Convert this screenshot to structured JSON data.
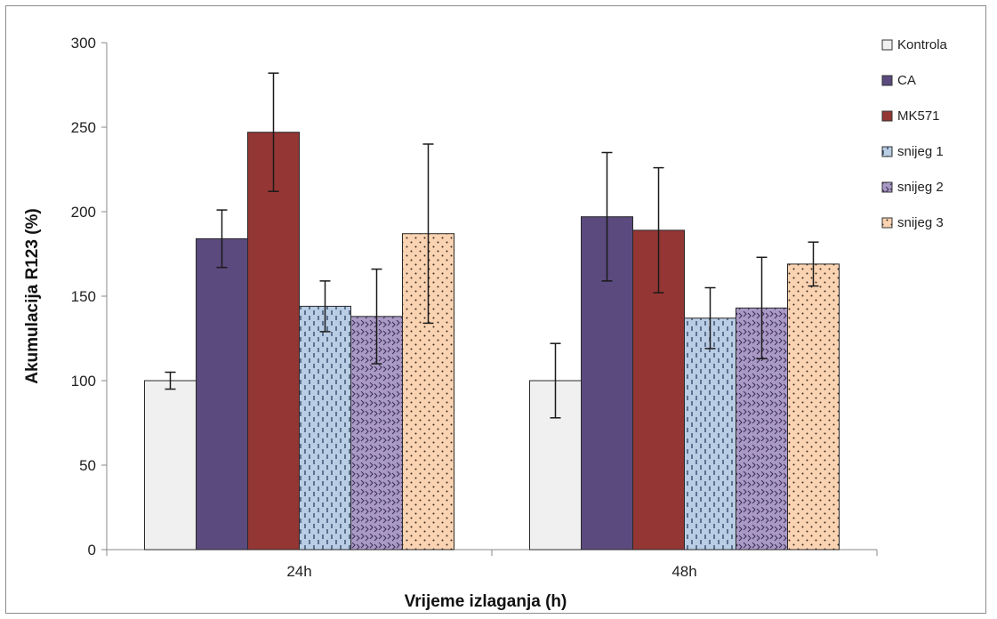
{
  "chart_data": {
    "type": "bar",
    "title": "",
    "xlabel": "Vrijeme izlaganja (h)",
    "ylabel": "Akumulacija R123 (%)",
    "ylim": [
      0,
      300
    ],
    "yticks": [
      0,
      50,
      100,
      150,
      200,
      250,
      300
    ],
    "categories": [
      "24h",
      "48h"
    ],
    "grid": false,
    "legend_position": "right",
    "series": [
      {
        "name": "Kontrola",
        "values": [
          100,
          100
        ],
        "errors": [
          5,
          22
        ],
        "color": "#f0f0f0",
        "pattern": "none"
      },
      {
        "name": "CA",
        "values": [
          184,
          197
        ],
        "errors": [
          17,
          38
        ],
        "color": "#5b4a7e",
        "pattern": "none"
      },
      {
        "name": "MK571",
        "values": [
          247,
          189
        ],
        "errors": [
          35,
          37
        ],
        "color": "#943634",
        "pattern": "none"
      },
      {
        "name": "snijeg 1",
        "values": [
          144,
          137
        ],
        "errors": [
          15,
          18
        ],
        "color": "#b9cde4",
        "pattern": "dashes"
      },
      {
        "name": "snijeg 2",
        "values": [
          138,
          143
        ],
        "errors": [
          28,
          30
        ],
        "color": "#a999c4",
        "pattern": "zigzag"
      },
      {
        "name": "snijeg 3",
        "values": [
          187,
          169
        ],
        "errors": [
          53,
          13
        ],
        "color": "#fad3b2",
        "pattern": "dots"
      }
    ]
  }
}
